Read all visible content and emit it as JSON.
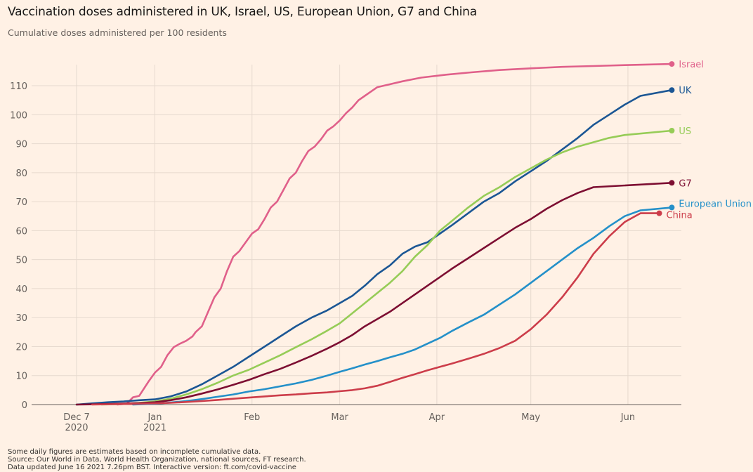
{
  "header": {
    "title": "Vaccination doses administered in UK, Israel, US, European Union, G7 and China",
    "subtitle": "Cumulative doses administered per 100 residents"
  },
  "footer": {
    "note": "Some daily figures are estimates based on incomplete cumulative data.",
    "source": "Source: Our World in Data, World Health Organization, national sources, FT research.",
    "updated": "Data updated June 16 2021 7.26pm BST. Interactive version: ft.com/covid-vaccine"
  },
  "chart_data": {
    "type": "line",
    "title": "Vaccination doses administered in UK, Israel, US, European Union, G7 and China",
    "subtitle": "Cumulative doses administered per 100 residents",
    "xlabel": "",
    "ylabel": "Cumulative doses per 100 residents",
    "x_unit": "days since 2020-12-07",
    "xlim": [
      0,
      190
    ],
    "ylim": [
      0,
      118
    ],
    "grid": true,
    "legend": "direct labels at line ends (right)",
    "y_ticks": [
      0,
      10,
      20,
      30,
      40,
      50,
      60,
      70,
      80,
      90,
      100,
      110
    ],
    "x_ticks": [
      {
        "day": 0,
        "label": "Dec 7",
        "label2": "2020"
      },
      {
        "day": 25,
        "label": "Jan",
        "label2": "2021"
      },
      {
        "day": 56,
        "label": "Feb",
        "label2": ""
      },
      {
        "day": 84,
        "label": "Mar",
        "label2": ""
      },
      {
        "day": 115,
        "label": "Apr",
        "label2": ""
      },
      {
        "day": 145,
        "label": "May",
        "label2": ""
      },
      {
        "day": 176,
        "label": "Jun",
        "label2": ""
      }
    ],
    "series": [
      {
        "name": "Israel",
        "color": "#e0608a",
        "points": [
          [
            13,
            0
          ],
          [
            16,
            0.3
          ],
          [
            18,
            2.5
          ],
          [
            20,
            3
          ],
          [
            23,
            8
          ],
          [
            25,
            11
          ],
          [
            27,
            13
          ],
          [
            29,
            17
          ],
          [
            31,
            19.8
          ],
          [
            33,
            21
          ],
          [
            35,
            22
          ],
          [
            37,
            23.5
          ],
          [
            38,
            25
          ],
          [
            40,
            27
          ],
          [
            42,
            32
          ],
          [
            44,
            37
          ],
          [
            46,
            40
          ],
          [
            48,
            46
          ],
          [
            50,
            51
          ],
          [
            52,
            53
          ],
          [
            54,
            56
          ],
          [
            56,
            59
          ],
          [
            58,
            60.5
          ],
          [
            60,
            64
          ],
          [
            62,
            68
          ],
          [
            64,
            70
          ],
          [
            66,
            74
          ],
          [
            68,
            78
          ],
          [
            70,
            80
          ],
          [
            72,
            84
          ],
          [
            74,
            87.5
          ],
          [
            76,
            89
          ],
          [
            78,
            91.5
          ],
          [
            80,
            94.5
          ],
          [
            82,
            96
          ],
          [
            84,
            98
          ],
          [
            86,
            100.5
          ],
          [
            88,
            102.5
          ],
          [
            90,
            105
          ],
          [
            92,
            106.5
          ],
          [
            94,
            108
          ],
          [
            96,
            109.5
          ],
          [
            100,
            110.5
          ],
          [
            104,
            111.5
          ],
          [
            110,
            112.8
          ],
          [
            118,
            113.8
          ],
          [
            126,
            114.6
          ],
          [
            135,
            115.4
          ],
          [
            145,
            116
          ],
          [
            155,
            116.5
          ],
          [
            165,
            116.8
          ],
          [
            175,
            117.1
          ],
          [
            190,
            117.5
          ]
        ]
      },
      {
        "name": "UK",
        "color": "#1b5694",
        "points": [
          [
            0,
            0
          ],
          [
            5,
            0.4
          ],
          [
            10,
            0.8
          ],
          [
            15,
            1.1
          ],
          [
            20,
            1.5
          ],
          [
            25,
            1.8
          ],
          [
            30,
            2.8
          ],
          [
            35,
            4.5
          ],
          [
            40,
            7
          ],
          [
            45,
            10
          ],
          [
            50,
            13
          ],
          [
            55,
            16.5
          ],
          [
            60,
            20
          ],
          [
            65,
            23.5
          ],
          [
            70,
            27
          ],
          [
            75,
            30
          ],
          [
            80,
            32.5
          ],
          [
            84,
            35
          ],
          [
            88,
            37.5
          ],
          [
            92,
            41
          ],
          [
            96,
            45
          ],
          [
            100,
            48
          ],
          [
            104,
            52
          ],
          [
            108,
            54.5
          ],
          [
            112,
            56
          ],
          [
            116,
            59
          ],
          [
            120,
            62
          ],
          [
            125,
            66
          ],
          [
            130,
            70
          ],
          [
            135,
            73
          ],
          [
            140,
            77
          ],
          [
            145,
            80.5
          ],
          [
            150,
            84
          ],
          [
            155,
            88
          ],
          [
            160,
            92
          ],
          [
            165,
            96.5
          ],
          [
            170,
            100
          ],
          [
            175,
            103.5
          ],
          [
            180,
            106.5
          ],
          [
            190,
            108.5
          ]
        ]
      },
      {
        "name": "US",
        "color": "#96cc57",
        "points": [
          [
            8,
            0
          ],
          [
            15,
            0.2
          ],
          [
            20,
            0.6
          ],
          [
            25,
            1.1
          ],
          [
            30,
            2
          ],
          [
            35,
            3.5
          ],
          [
            40,
            5.3
          ],
          [
            45,
            7.5
          ],
          [
            50,
            10
          ],
          [
            55,
            12
          ],
          [
            60,
            14.5
          ],
          [
            65,
            17
          ],
          [
            70,
            19.8
          ],
          [
            75,
            22.5
          ],
          [
            80,
            25.5
          ],
          [
            84,
            28
          ],
          [
            88,
            31.5
          ],
          [
            92,
            35
          ],
          [
            96,
            38.5
          ],
          [
            100,
            42
          ],
          [
            104,
            46
          ],
          [
            108,
            51
          ],
          [
            112,
            55
          ],
          [
            116,
            60
          ],
          [
            120,
            63.5
          ],
          [
            125,
            68
          ],
          [
            130,
            72
          ],
          [
            135,
            75
          ],
          [
            140,
            78.5
          ],
          [
            145,
            81.5
          ],
          [
            150,
            84.5
          ],
          [
            155,
            87
          ],
          [
            160,
            89
          ],
          [
            165,
            90.5
          ],
          [
            170,
            92
          ],
          [
            175,
            93
          ],
          [
            190,
            94.5
          ]
        ]
      },
      {
        "name": "G7",
        "color": "#7d0e32",
        "points": [
          [
            0,
            0
          ],
          [
            10,
            0.2
          ],
          [
            20,
            0.5
          ],
          [
            25,
            0.8
          ],
          [
            30,
            1.5
          ],
          [
            35,
            2.5
          ],
          [
            40,
            3.8
          ],
          [
            45,
            5.2
          ],
          [
            50,
            6.8
          ],
          [
            55,
            8.5
          ],
          [
            60,
            10.5
          ],
          [
            65,
            12.3
          ],
          [
            70,
            14.5
          ],
          [
            75,
            16.8
          ],
          [
            80,
            19.3
          ],
          [
            84,
            21.5
          ],
          [
            88,
            24
          ],
          [
            92,
            27
          ],
          [
            96,
            29.5
          ],
          [
            100,
            32
          ],
          [
            104,
            35
          ],
          [
            108,
            38
          ],
          [
            112,
            41
          ],
          [
            116,
            44
          ],
          [
            120,
            47
          ],
          [
            125,
            50.5
          ],
          [
            130,
            54
          ],
          [
            135,
            57.5
          ],
          [
            140,
            61
          ],
          [
            145,
            64
          ],
          [
            150,
            67.5
          ],
          [
            155,
            70.5
          ],
          [
            160,
            73
          ],
          [
            165,
            75
          ],
          [
            190,
            76.5
          ]
        ]
      },
      {
        "name": "European Union",
        "color": "#2490c9",
        "points": [
          [
            18,
            0
          ],
          [
            25,
            0.3
          ],
          [
            30,
            0.7
          ],
          [
            35,
            1.2
          ],
          [
            40,
            1.9
          ],
          [
            45,
            2.7
          ],
          [
            50,
            3.5
          ],
          [
            55,
            4.5
          ],
          [
            60,
            5.3
          ],
          [
            65,
            6.3
          ],
          [
            70,
            7.3
          ],
          [
            75,
            8.5
          ],
          [
            80,
            10
          ],
          [
            84,
            11.3
          ],
          [
            88,
            12.5
          ],
          [
            92,
            13.8
          ],
          [
            96,
            15
          ],
          [
            100,
            16.3
          ],
          [
            104,
            17.5
          ],
          [
            108,
            19
          ],
          [
            112,
            21
          ],
          [
            116,
            23
          ],
          [
            120,
            25.5
          ],
          [
            125,
            28.3
          ],
          [
            130,
            31
          ],
          [
            135,
            34.5
          ],
          [
            140,
            38
          ],
          [
            145,
            42
          ],
          [
            150,
            46
          ],
          [
            155,
            50
          ],
          [
            160,
            54
          ],
          [
            165,
            57.5
          ],
          [
            170,
            61.5
          ],
          [
            175,
            65
          ],
          [
            180,
            67
          ],
          [
            190,
            68
          ]
        ]
      },
      {
        "name": "China",
        "color": "#cc3d4a",
        "points": [
          [
            5,
            0
          ],
          [
            15,
            0.2
          ],
          [
            25,
            0.4
          ],
          [
            30,
            0.6
          ],
          [
            35,
            0.9
          ],
          [
            40,
            1.2
          ],
          [
            45,
            1.6
          ],
          [
            50,
            2
          ],
          [
            55,
            2.4
          ],
          [
            60,
            2.8
          ],
          [
            65,
            3.2
          ],
          [
            70,
            3.5
          ],
          [
            75,
            3.9
          ],
          [
            80,
            4.2
          ],
          [
            84,
            4.6
          ],
          [
            88,
            5
          ],
          [
            92,
            5.6
          ],
          [
            96,
            6.5
          ],
          [
            100,
            7.8
          ],
          [
            104,
            9.2
          ],
          [
            108,
            10.5
          ],
          [
            112,
            11.8
          ],
          [
            116,
            13
          ],
          [
            120,
            14.2
          ],
          [
            125,
            15.8
          ],
          [
            130,
            17.5
          ],
          [
            135,
            19.5
          ],
          [
            140,
            22
          ],
          [
            145,
            26
          ],
          [
            150,
            31
          ],
          [
            155,
            37
          ],
          [
            160,
            44
          ],
          [
            165,
            52
          ],
          [
            170,
            58
          ],
          [
            175,
            63
          ],
          [
            180,
            66
          ],
          [
            186,
            66
          ]
        ]
      }
    ]
  }
}
